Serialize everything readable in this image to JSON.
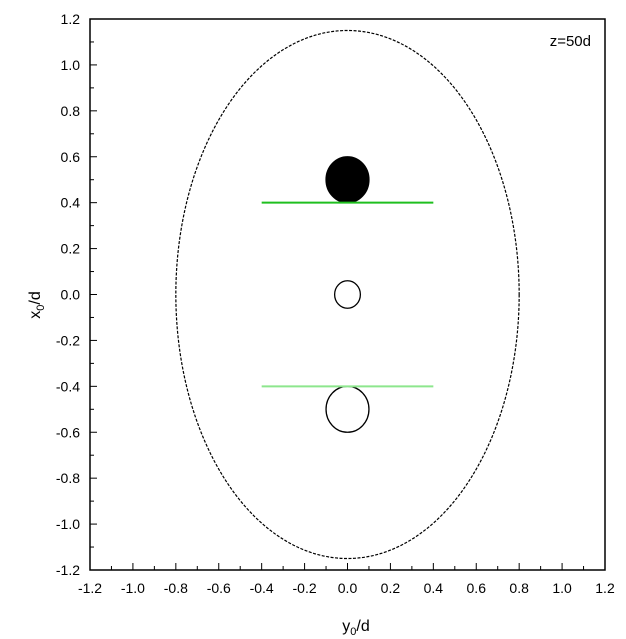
{
  "chart_data": {
    "type": "scatter",
    "title": "",
    "annotation": "z=50d",
    "xlabel": {
      "main": "y",
      "sub": "0",
      "rest": "/d"
    },
    "ylabel": {
      "main": "x",
      "sub": "0",
      "rest": "/d"
    },
    "xlim": [
      -1.2,
      1.2
    ],
    "ylim": [
      -1.2,
      1.2
    ],
    "xticks": [
      "-1.2",
      "-1.0",
      "-0.8",
      "-0.6",
      "-0.4",
      "-0.2",
      "0.0",
      "0.2",
      "0.4",
      "0.6",
      "0.8",
      "1.0",
      "1.2"
    ],
    "yticks": [
      "1.2",
      "1.0",
      "0.8",
      "0.6",
      "0.4",
      "0.2",
      "0.0",
      "-0.2",
      "-0.4",
      "-0.6",
      "-0.8",
      "-1.0",
      "-1.2"
    ],
    "grid": false,
    "legend": "none",
    "series": [
      {
        "shape": "ellipse",
        "center": [
          0.0,
          0.0
        ],
        "radii": [
          0.8,
          1.15
        ],
        "style": "dotted-outline",
        "color": "#000000"
      },
      {
        "shape": "circle",
        "center": [
          0.0,
          0.5
        ],
        "radius": 0.1,
        "style": "filled",
        "color": "#000000"
      },
      {
        "shape": "circle",
        "center": [
          0.0,
          0.0
        ],
        "radius": 0.06,
        "style": "outline",
        "color": "#000000"
      },
      {
        "shape": "circle",
        "center": [
          0.0,
          -0.5
        ],
        "radius": 0.1,
        "style": "outline",
        "color": "#000000"
      },
      {
        "shape": "segment",
        "x": [
          -0.4,
          0.4
        ],
        "y": [
          0.4,
          0.4
        ],
        "color": "#1fbf1f"
      },
      {
        "shape": "segment",
        "x": [
          -0.4,
          0.4
        ],
        "y": [
          -0.4,
          -0.4
        ],
        "color": "#8de68d"
      }
    ]
  }
}
